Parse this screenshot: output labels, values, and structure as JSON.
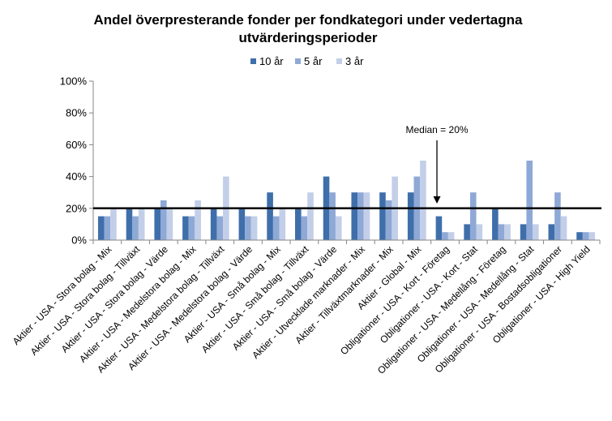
{
  "chart_data": {
    "type": "bar",
    "title": "Andel överpresterande fonder per fondkategori under vedertagna utvärderingsperioder",
    "categories": [
      "Aktier - USA - Stora bolag - Mix",
      "Aktier - USA - Stora bolag - Tillväxt",
      "Aktier - USA - Stora bolag - Värde",
      "Aktier - USA - Medelstora bolag - Mix",
      "Aktier - USA - Medelstora bolag - Tillväxt",
      "Aktier - USA - Medelstora bolag - Värde",
      "Aktier - USA - Små bolag - Mix",
      "Aktier - USA - Små bolag - Tillväxt",
      "Aktier - USA - Små bolag - Värde",
      "Aktier - Utvecklade marknader - Mix",
      "Aktier - Tillväxtmarknader - Mix",
      "Aktier - Global - Mix",
      "Obligationer - USA - Kort - Företag",
      "Obligationer - USA - Kort - Stat",
      "Obligationer - USA - Medellång - Företag",
      "Obligationer - USA - Medellång - Stat",
      "Obligationer - USA - Bostadsobligationer",
      "Obligationer - USA - High Yield"
    ],
    "series": [
      {
        "name": "10 år",
        "color": "#3f6faa",
        "values": [
          15,
          20,
          20,
          15,
          20,
          20,
          30,
          20,
          40,
          30,
          30,
          30,
          15,
          10,
          20,
          10,
          10,
          5
        ]
      },
      {
        "name": "5 år",
        "color": "#8fa9d6",
        "values": [
          15,
          15,
          25,
          15,
          15,
          15,
          15,
          15,
          30,
          30,
          25,
          40,
          5,
          30,
          10,
          50,
          30,
          5
        ]
      },
      {
        "name": "3 år",
        "color": "#c3cfe8",
        "values": [
          20,
          20,
          20,
          25,
          40,
          15,
          20,
          30,
          15,
          30,
          40,
          50,
          5,
          10,
          10,
          10,
          15,
          5
        ]
      }
    ],
    "y_ticks": [
      "0%",
      "20%",
      "40%",
      "60%",
      "80%",
      "100%"
    ],
    "ylim": [
      0,
      100
    ],
    "median_value": 20,
    "annotation": "Median = 20%",
    "annotation_category_index": 12,
    "legend_position": "top",
    "grid": false
  }
}
